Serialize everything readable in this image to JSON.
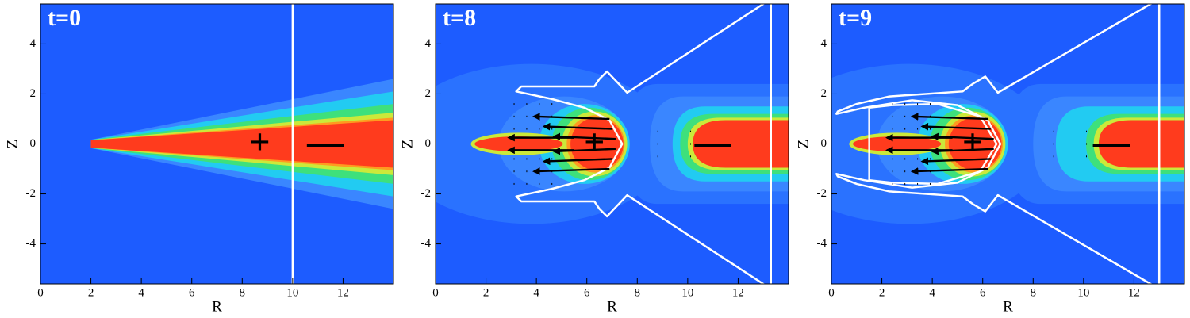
{
  "chart_data": [
    {
      "type": "contour",
      "title": "t=0",
      "xlabel": "R",
      "ylabel": "Z",
      "xlim": [
        0,
        14
      ],
      "ylim": [
        -5.6,
        5.6
      ],
      "xticks": [
        0,
        2,
        4,
        6,
        8,
        10,
        12
      ],
      "yticks": [
        -4,
        -2,
        0,
        2,
        4
      ],
      "annotations": [
        {
          "text": "+",
          "x": 8.7,
          "y": 0,
          "color": "#000000"
        },
        {
          "text": "—",
          "x": 11.3,
          "y": 0,
          "color": "#000000"
        }
      ]
    },
    {
      "type": "contour",
      "title": "t=8",
      "xlabel": "R",
      "ylabel": "Z",
      "xlim": [
        0,
        14
      ],
      "ylim": [
        -5.6,
        5.6
      ],
      "xticks": [
        0,
        2,
        4,
        6,
        8,
        10,
        12
      ],
      "yticks": [
        -4,
        -2,
        0,
        2,
        4
      ],
      "annotations": [
        {
          "text": "+",
          "x": 6.3,
          "y": 0,
          "color": "#ffffff"
        },
        {
          "text": "—",
          "x": 11.0,
          "y": 0,
          "color": "#000000"
        }
      ]
    },
    {
      "type": "contour",
      "title": "t=9",
      "xlabel": "R",
      "ylabel": "Z",
      "xlim": [
        0,
        14
      ],
      "ylim": [
        -5.6,
        5.6
      ],
      "xticks": [
        0,
        2,
        4,
        6,
        8,
        10,
        12
      ],
      "yticks": [
        -4,
        -2,
        0,
        2,
        4
      ],
      "annotations": [
        {
          "text": "+",
          "x": 5.6,
          "y": 0,
          "color": "#ffffff"
        },
        {
          "text": "—",
          "x": 11.1,
          "y": 0,
          "color": "#000000"
        }
      ]
    }
  ]
}
